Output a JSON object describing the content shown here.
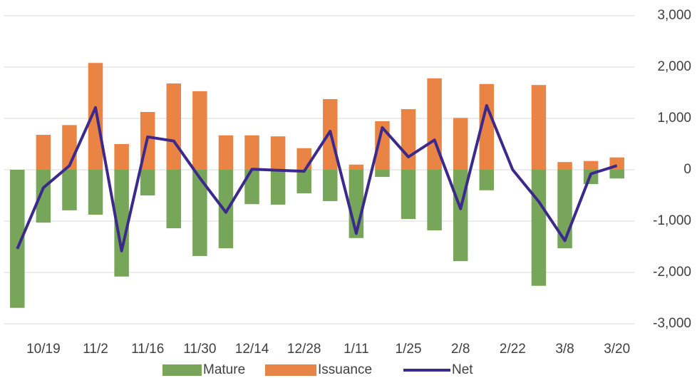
{
  "chart_data": {
    "type": "bar-line",
    "categories": [
      null,
      "10/19",
      null,
      "11/2",
      null,
      "11/16",
      null,
      "11/30",
      null,
      "12/14",
      null,
      "12/28",
      null,
      "1/11",
      null,
      "1/25",
      null,
      "2/8",
      null,
      "2/22",
      null,
      "3/8",
      null,
      "3/20"
    ],
    "series": [
      {
        "name": "Mature",
        "type": "bar",
        "color": "#77a65a",
        "values": [
          -2690,
          -1030,
          -790,
          -875,
          -2080,
          -500,
          -1140,
          -1680,
          -1530,
          -670,
          -680,
          -460,
          -610,
          -1330,
          -140,
          -960,
          -1180,
          -1780,
          -400,
          0,
          -2260,
          -1530,
          -280,
          -170
        ]
      },
      {
        "name": "Issuance",
        "type": "bar",
        "color": "#ea8444",
        "values": [
          0,
          680,
          870,
          2080,
          500,
          1125,
          1680,
          1530,
          670,
          670,
          650,
          420,
          1375,
          100,
          945,
          1180,
          1780,
          1010,
          1670,
          0,
          1650,
          150,
          170,
          240
        ]
      },
      {
        "name": "Net",
        "type": "line",
        "color": "#3b2a8c",
        "values": [
          -1540,
          -350,
          80,
          1210,
          -1580,
          640,
          560,
          -160,
          -830,
          10,
          -10,
          -30,
          750,
          -1240,
          820,
          250,
          580,
          -760,
          1250,
          0,
          -620,
          -1380,
          -80,
          80
        ]
      }
    ],
    "ylim": [
      -3000,
      3000
    ],
    "yticks": [
      {
        "value": -3000,
        "label": "-3,000"
      },
      {
        "value": -2000,
        "label": "-2,000"
      },
      {
        "value": -1000,
        "label": "-1,000"
      },
      0,
      {
        "value": 1000,
        "label": "1,000"
      },
      {
        "value": 2000,
        "label": "2,000"
      },
      {
        "value": 3000,
        "label": "3,000"
      }
    ],
    "grid": true,
    "legend": "bottom"
  }
}
